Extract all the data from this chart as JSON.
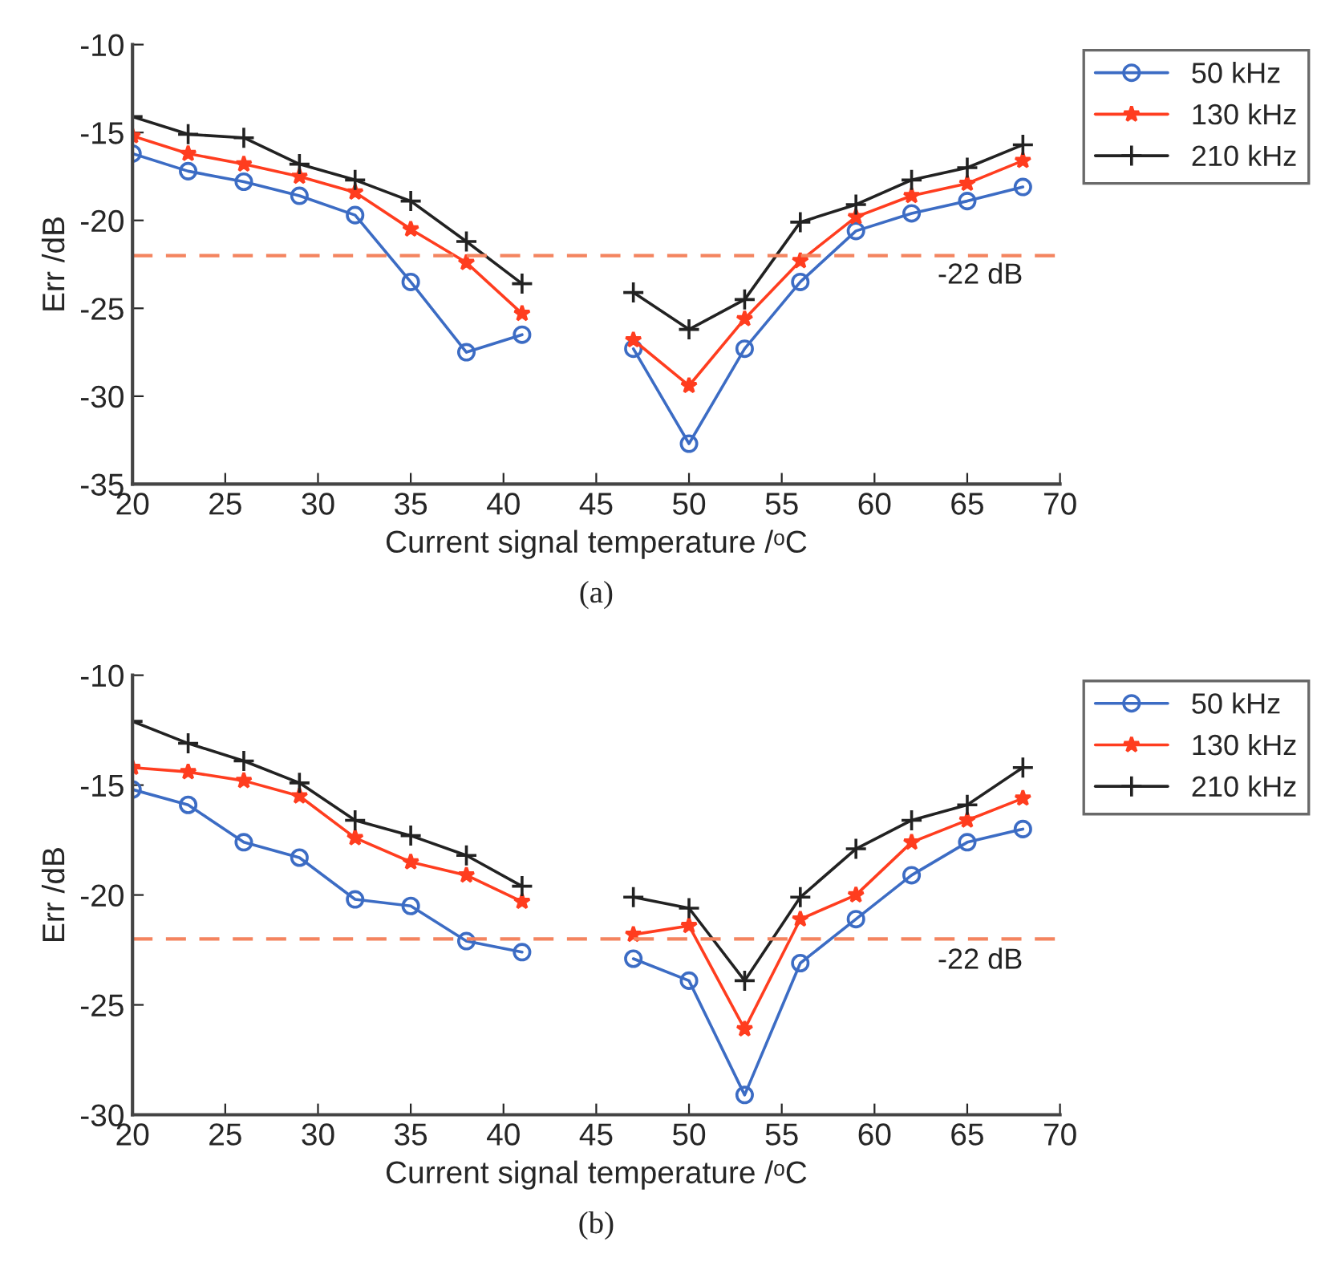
{
  "chart_data": [
    {
      "type": "line",
      "xlabel": "Current signal temperature /ᵒC",
      "ylabel": "Err /dB",
      "annotations": [
        "(a)"
      ],
      "x": [
        20,
        23,
        26,
        29,
        32,
        35,
        38,
        41,
        44,
        47,
        50,
        53,
        56,
        59,
        62,
        65,
        68
      ],
      "xlim": [
        20,
        70
      ],
      "xticks": [
        20,
        25,
        30,
        35,
        40,
        45,
        50,
        55,
        60,
        65,
        70
      ],
      "ylim": [
        -35,
        -10
      ],
      "yticks": [
        -35,
        -30,
        -25,
        -20,
        -15,
        -10
      ],
      "grid": false,
      "legend": "top right",
      "line_style": "solid",
      "ref_lines": [
        {
          "axis": "y",
          "value": -22,
          "label": "-22 dB",
          "color": "#f4845f",
          "line_style": "dashed"
        }
      ],
      "series": [
        {
          "name": "50 kHz",
          "color": "#3c6cc4",
          "marker": "circle",
          "values": [
            -16.2,
            -17.2,
            -17.8,
            -18.6,
            -19.7,
            -23.5,
            -27.5,
            -26.5,
            null,
            -27.3,
            -32.7,
            -27.3,
            -23.5,
            -20.6,
            -19.6,
            -18.9,
            -18.1
          ]
        },
        {
          "name": "130 kHz",
          "color": "#ff3d1f",
          "marker": "star",
          "values": [
            -15.2,
            -16.2,
            -16.8,
            -17.5,
            -18.4,
            -20.5,
            -22.4,
            -25.3,
            null,
            -26.8,
            -29.4,
            -25.6,
            -22.3,
            -19.8,
            -18.6,
            -17.9,
            -16.6
          ]
        },
        {
          "name": "210 kHz",
          "color": "#222222",
          "marker": "cross",
          "values": [
            -14.1,
            -15.1,
            -15.3,
            -16.8,
            -17.7,
            -18.9,
            -21.2,
            -23.6,
            null,
            -24.1,
            -26.2,
            -24.5,
            -20.1,
            -19.1,
            -17.7,
            -17.0,
            -15.7
          ]
        }
      ]
    },
    {
      "type": "line",
      "xlabel": "Current signal temperature /ᵒC",
      "ylabel": "Err /dB",
      "annotations": [
        "(b)"
      ],
      "x": [
        20,
        23,
        26,
        29,
        32,
        35,
        38,
        41,
        44,
        47,
        50,
        53,
        56,
        59,
        62,
        65,
        68
      ],
      "xlim": [
        20,
        70
      ],
      "xticks": [
        20,
        25,
        30,
        35,
        40,
        45,
        50,
        55,
        60,
        65,
        70
      ],
      "ylim": [
        -30,
        -10
      ],
      "yticks": [
        -30,
        -25,
        -20,
        -15,
        -10
      ],
      "grid": false,
      "legend": "top right",
      "line_style": "solid",
      "ref_lines": [
        {
          "axis": "y",
          "value": -22,
          "label": "-22 dB",
          "color": "#f4845f",
          "line_style": "dashed"
        }
      ],
      "series": [
        {
          "name": "50 kHz",
          "color": "#3c6cc4",
          "marker": "circle",
          "values": [
            -15.2,
            -15.9,
            -17.6,
            -18.3,
            -20.2,
            -20.5,
            -22.1,
            -22.6,
            null,
            -22.9,
            -23.9,
            -29.1,
            -23.1,
            -21.1,
            -19.1,
            -17.6,
            -17.0
          ]
        },
        {
          "name": "130 kHz",
          "color": "#ff3d1f",
          "marker": "star",
          "values": [
            -14.2,
            -14.4,
            -14.8,
            -15.5,
            -17.4,
            -18.5,
            -19.1,
            -20.3,
            null,
            -21.8,
            -21.4,
            -26.1,
            -21.1,
            -20.0,
            -17.6,
            -16.6,
            -15.6
          ]
        },
        {
          "name": "210 kHz",
          "color": "#222222",
          "marker": "cross",
          "values": [
            -12.1,
            -13.1,
            -13.9,
            -14.9,
            -16.6,
            -17.3,
            -18.2,
            -19.6,
            null,
            -20.1,
            -20.6,
            -23.9,
            -20.1,
            -17.9,
            -16.6,
            -15.9,
            -14.2
          ]
        }
      ]
    }
  ]
}
